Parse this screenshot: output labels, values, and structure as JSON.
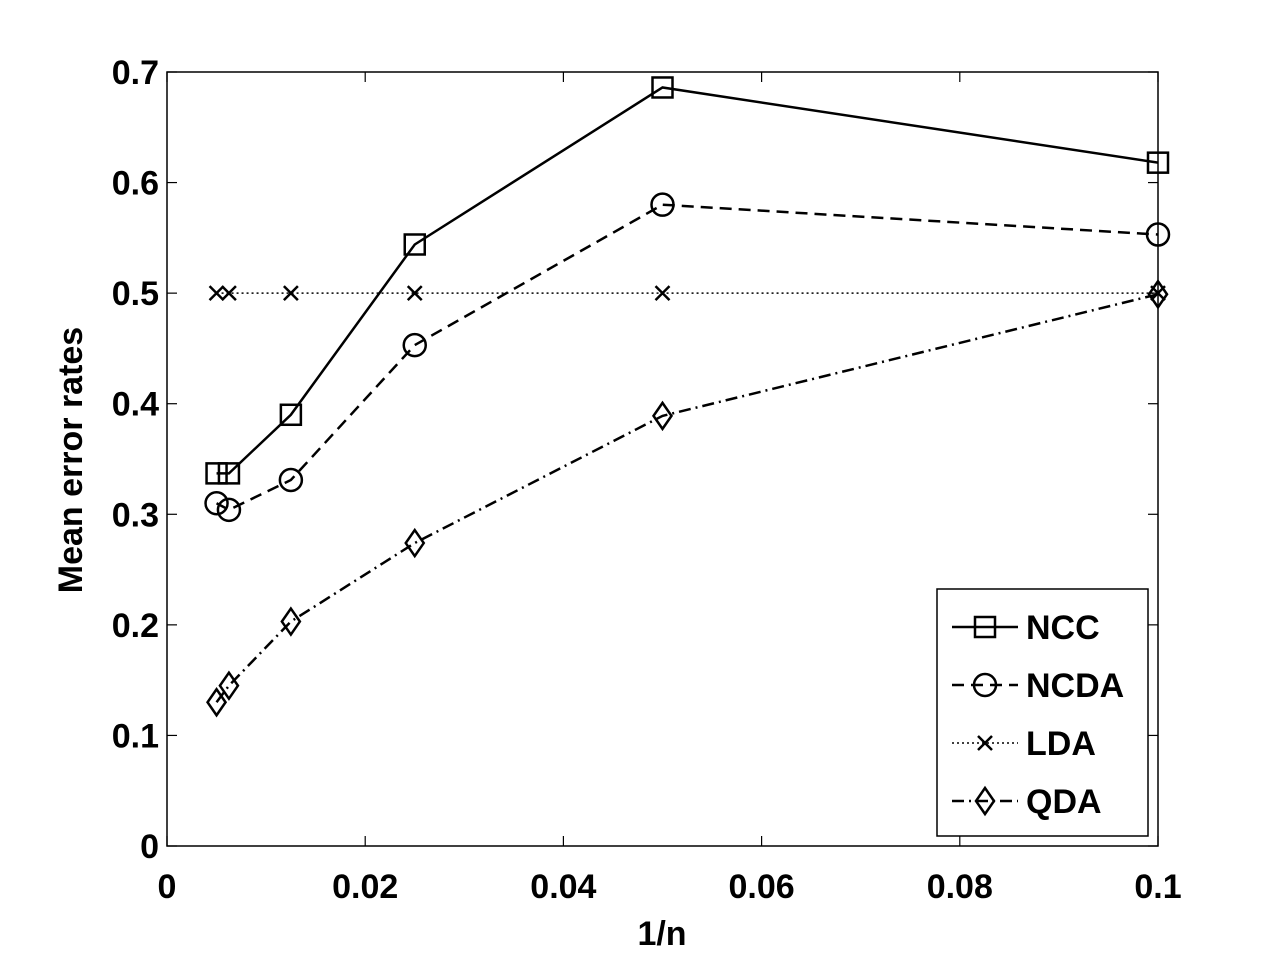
{
  "chart_data": {
    "type": "line",
    "title": "",
    "xlabel": "1/n",
    "ylabel": "Mean error rates",
    "xlim": [
      0,
      0.1
    ],
    "ylim": [
      0,
      0.7
    ],
    "xticks": [
      0,
      0.02,
      0.04,
      0.06,
      0.08,
      0.1
    ],
    "xtick_labels": [
      "0",
      "0.02",
      "0.04",
      "0.06",
      "0.08",
      "0.1"
    ],
    "yticks": [
      0,
      0.1,
      0.2,
      0.3,
      0.4,
      0.5,
      0.6,
      0.7
    ],
    "ytick_labels": [
      "0",
      "0.1",
      "0.2",
      "0.3",
      "0.4",
      "0.5",
      "0.6",
      "0.7"
    ],
    "grid": false,
    "legend_position": "bottom-right",
    "x": [
      0.005,
      0.00625,
      0.0125,
      0.025,
      0.05,
      0.1
    ],
    "series": [
      {
        "name": "NCC",
        "marker": "square",
        "dash": "solid",
        "values": [
          0.337,
          0.337,
          0.39,
          0.544,
          0.686,
          0.618
        ]
      },
      {
        "name": "NCDA",
        "marker": "circle",
        "dash": "dashed",
        "values": [
          0.31,
          0.304,
          0.331,
          0.453,
          0.58,
          0.553
        ]
      },
      {
        "name": "LDA",
        "marker": "x",
        "dash": "dotted",
        "values": [
          0.5,
          0.5,
          0.5,
          0.5,
          0.5,
          0.5
        ]
      },
      {
        "name": "QDA",
        "marker": "diamond",
        "dash": "dashdot",
        "values": [
          0.13,
          0.145,
          0.203,
          0.274,
          0.389,
          0.499
        ]
      }
    ]
  }
}
